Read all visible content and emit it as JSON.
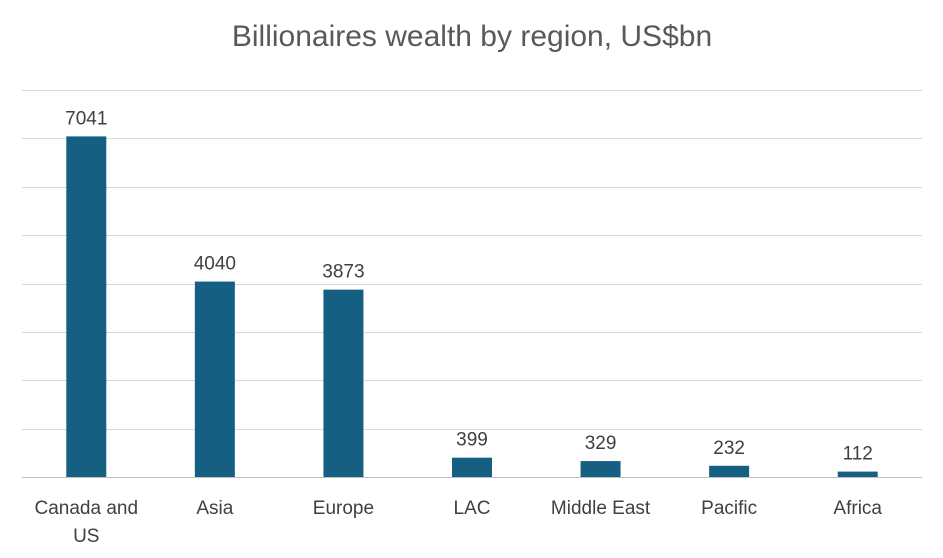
{
  "chart_data": {
    "type": "bar",
    "title": "Billionaires wealth by region, US$bn",
    "categories": [
      "Canada and US",
      "Asia",
      "Europe",
      "LAC",
      "Middle East",
      "Pacific",
      "Africa"
    ],
    "category_lines": [
      [
        "Canada and",
        "US"
      ],
      [
        "Asia"
      ],
      [
        "Europe"
      ],
      [
        "LAC"
      ],
      [
        "Middle East"
      ],
      [
        "Pacific"
      ],
      [
        "Africa"
      ]
    ],
    "values": [
      7041,
      4040,
      3873,
      399,
      329,
      232,
      112
    ],
    "value_labels": [
      "7041",
      "4040",
      "3873",
      "399",
      "329",
      "232",
      "112"
    ],
    "ylim": [
      0,
      8000
    ],
    "ytick_step": 1000,
    "grid": true,
    "xlabel": "",
    "ylabel": "",
    "bar_color": "#156082"
  }
}
